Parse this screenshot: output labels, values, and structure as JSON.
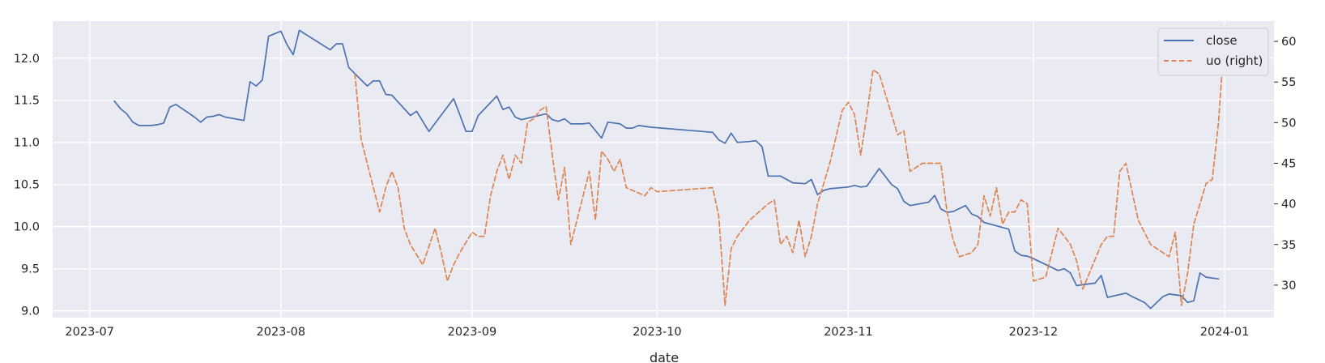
{
  "chart_data": {
    "type": "line",
    "xlabel": "date",
    "x_ticks": [
      "2023-07",
      "2023-08",
      "2023-09",
      "2023-10",
      "2023-11",
      "2023-12",
      "2024-01"
    ],
    "y_left_ticks": [
      "9.0",
      "9.5",
      "10.0",
      "10.5",
      "11.0",
      "11.5",
      "12.0"
    ],
    "y_right_ticks": [
      "30",
      "35",
      "40",
      "45",
      "50",
      "55",
      "60"
    ],
    "ylim_left": [
      8.92,
      12.44
    ],
    "ylim_right": [
      26.0,
      62.5
    ],
    "xlim": [
      "2023-06-25",
      "2024-01-09"
    ],
    "grid": true,
    "legend_position": "top-right",
    "colors": {
      "close": "#4c72b0",
      "uo": "#dd8452",
      "plot_bg": "#eaeaf2",
      "grid": "#ffffff"
    },
    "series": [
      {
        "name": "close",
        "axis": "left",
        "style": "solid",
        "x": [
          "2023-07-05",
          "2023-07-06",
          "2023-07-07",
          "2023-07-08",
          "2023-07-09",
          "2023-07-11",
          "2023-07-12",
          "2023-07-13",
          "2023-07-14",
          "2023-07-15",
          "2023-07-16",
          "2023-07-17",
          "2023-07-18",
          "2023-07-19",
          "2023-07-20",
          "2023-07-21",
          "2023-07-22",
          "2023-07-23",
          "2023-07-26",
          "2023-07-27",
          "2023-07-28",
          "2023-07-29",
          "2023-07-30",
          "2023-08-01",
          "2023-08-02",
          "2023-08-03",
          "2023-08-04",
          "2023-08-09",
          "2023-08-10",
          "2023-08-11",
          "2023-08-12",
          "2023-08-15",
          "2023-08-16",
          "2023-08-17",
          "2023-08-18",
          "2023-08-19",
          "2023-08-22",
          "2023-08-23",
          "2023-08-25",
          "2023-08-29",
          "2023-08-30",
          "2023-08-31",
          "2023-09-01",
          "2023-09-02",
          "2023-09-05",
          "2023-09-06",
          "2023-09-07",
          "2023-09-08",
          "2023-09-09",
          "2023-09-13",
          "2023-09-14",
          "2023-09-15",
          "2023-09-16",
          "2023-09-17",
          "2023-09-19",
          "2023-09-20",
          "2023-09-22",
          "2023-09-23",
          "2023-09-24",
          "2023-09-25",
          "2023-09-26",
          "2023-09-27",
          "2023-09-28",
          "2023-09-30",
          "2023-10-10",
          "2023-10-11",
          "2023-10-12",
          "2023-10-13",
          "2023-10-14",
          "2023-10-16",
          "2023-10-17",
          "2023-10-18",
          "2023-10-19",
          "2023-10-21",
          "2023-10-23",
          "2023-10-25",
          "2023-10-26",
          "2023-10-27",
          "2023-10-28",
          "2023-10-29",
          "2023-11-01",
          "2023-11-02",
          "2023-11-03",
          "2023-11-04",
          "2023-11-06",
          "2023-11-08",
          "2023-11-09",
          "2023-11-10",
          "2023-11-11",
          "2023-11-14",
          "2023-11-15",
          "2023-11-16",
          "2023-11-17",
          "2023-11-18",
          "2023-11-20",
          "2023-11-21",
          "2023-11-22",
          "2023-11-23",
          "2023-11-27",
          "2023-11-28",
          "2023-11-29",
          "2023-11-30",
          "2023-12-01",
          "2023-12-05",
          "2023-12-06",
          "2023-12-07",
          "2023-12-08",
          "2023-12-09",
          "2023-12-11",
          "2023-12-12",
          "2023-12-13",
          "2023-12-16",
          "2023-12-17",
          "2023-12-19",
          "2023-12-20",
          "2023-12-22",
          "2023-12-23",
          "2023-12-24",
          "2023-12-25",
          "2023-12-26",
          "2023-12-27",
          "2023-12-28",
          "2023-12-29",
          "2023-12-31"
        ],
        "values": [
          11.49,
          11.4,
          11.34,
          11.24,
          11.2,
          11.2,
          11.21,
          11.23,
          11.42,
          11.45,
          11.4,
          11.35,
          11.3,
          11.24,
          11.3,
          11.31,
          11.33,
          11.3,
          11.26,
          11.72,
          11.67,
          11.74,
          12.26,
          12.32,
          12.16,
          12.04,
          12.33,
          12.1,
          12.17,
          12.17,
          11.89,
          11.67,
          11.73,
          11.73,
          11.57,
          11.56,
          11.32,
          11.37,
          11.13,
          11.52,
          11.33,
          11.13,
          11.13,
          11.32,
          11.55,
          11.39,
          11.42,
          11.3,
          11.27,
          11.34,
          11.27,
          11.25,
          11.28,
          11.22,
          11.22,
          11.23,
          11.05,
          11.24,
          11.23,
          11.22,
          11.17,
          11.17,
          11.2,
          11.18,
          11.12,
          11.03,
          10.99,
          11.11,
          11.0,
          11.01,
          11.02,
          10.95,
          10.6,
          10.6,
          10.52,
          10.51,
          10.56,
          10.38,
          10.43,
          10.45,
          10.47,
          10.49,
          10.47,
          10.48,
          10.69,
          10.5,
          10.45,
          10.3,
          10.25,
          10.29,
          10.37,
          10.21,
          10.17,
          10.18,
          10.25,
          10.15,
          10.12,
          10.05,
          9.97,
          9.71,
          9.66,
          9.65,
          9.62,
          9.48,
          9.5,
          9.45,
          9.3,
          9.31,
          9.33,
          9.42,
          9.16,
          9.21,
          9.17,
          9.1,
          9.03,
          9.17,
          9.2,
          9.19,
          9.18,
          9.1,
          9.12,
          9.45,
          9.4,
          9.38
        ]
      },
      {
        "name": "uo (right)",
        "axis": "right",
        "style": "dashed",
        "x": [
          "2023-08-13",
          "2023-08-14",
          "2023-08-15",
          "2023-08-17",
          "2023-08-18",
          "2023-08-19",
          "2023-08-20",
          "2023-08-21",
          "2023-08-22",
          "2023-08-24",
          "2023-08-26",
          "2023-08-27",
          "2023-08-28",
          "2023-08-29",
          "2023-08-30",
          "2023-09-01",
          "2023-09-02",
          "2023-09-03",
          "2023-09-04",
          "2023-09-05",
          "2023-09-06",
          "2023-09-07",
          "2023-09-08",
          "2023-09-09",
          "2023-09-10",
          "2023-09-11",
          "2023-09-12",
          "2023-09-13",
          "2023-09-14",
          "2023-09-15",
          "2023-09-16",
          "2023-09-17",
          "2023-09-20",
          "2023-09-21",
          "2023-09-22",
          "2023-09-23",
          "2023-09-24",
          "2023-09-25",
          "2023-09-26",
          "2023-09-29",
          "2023-09-30",
          "2023-10-01",
          "2023-10-10",
          "2023-10-11",
          "2023-10-12",
          "2023-10-13",
          "2023-10-14",
          "2023-10-15",
          "2023-10-16",
          "2023-10-19",
          "2023-10-20",
          "2023-10-21",
          "2023-10-22",
          "2023-10-23",
          "2023-10-24",
          "2023-10-25",
          "2023-10-26",
          "2023-10-27",
          "2023-10-29",
          "2023-10-31",
          "2023-11-01",
          "2023-11-02",
          "2023-11-03",
          "2023-11-04",
          "2023-11-05",
          "2023-11-06",
          "2023-11-08",
          "2023-11-09",
          "2023-11-10",
          "2023-11-11",
          "2023-11-12",
          "2023-11-13",
          "2023-11-16",
          "2023-11-17",
          "2023-11-18",
          "2023-11-19",
          "2023-11-21",
          "2023-11-22",
          "2023-11-23",
          "2023-11-24",
          "2023-11-25",
          "2023-11-26",
          "2023-11-27",
          "2023-11-28",
          "2023-11-29",
          "2023-11-30",
          "2023-12-01",
          "2023-12-03",
          "2023-12-05",
          "2023-12-06",
          "2023-12-07",
          "2023-12-08",
          "2023-12-09",
          "2023-12-12",
          "2023-12-13",
          "2023-12-14",
          "2023-12-15",
          "2023-12-16",
          "2023-12-18",
          "2023-12-20",
          "2023-12-21",
          "2023-12-22",
          "2023-12-23",
          "2023-12-24",
          "2023-12-25",
          "2023-12-26",
          "2023-12-27",
          "2023-12-28",
          "2023-12-29",
          "2023-12-30",
          "2023-12-31",
          "2024-01-01"
        ],
        "values": [
          56,
          48,
          45,
          39,
          42,
          44,
          42,
          37,
          35,
          32.5,
          37,
          34,
          30.5,
          32.5,
          34,
          36.5,
          36,
          36,
          41,
          44,
          46,
          43,
          46,
          45,
          50,
          50.5,
          51.5,
          52,
          46,
          40.5,
          44.5,
          35,
          44,
          38,
          46.5,
          45.5,
          44,
          45.5,
          42,
          41,
          42,
          41.5,
          42,
          38.5,
          27.5,
          34.5,
          36,
          37,
          38,
          40,
          40.5,
          35,
          36,
          34,
          38,
          33.5,
          36,
          40,
          45,
          51.5,
          52.5,
          51,
          46,
          51,
          56.5,
          56,
          51,
          48.5,
          49,
          44,
          44.5,
          45,
          45,
          39,
          35.5,
          33.5,
          34,
          35,
          41,
          38.5,
          42,
          37.5,
          39,
          39,
          40.5,
          40,
          30.5,
          31,
          37,
          36,
          35,
          33,
          29.5,
          35,
          36,
          36,
          44,
          45,
          38,
          35,
          34.5,
          34,
          33.5,
          36.5,
          27.5,
          31.5,
          37.5,
          40,
          42.5,
          43,
          50,
          61
        ]
      }
    ]
  }
}
